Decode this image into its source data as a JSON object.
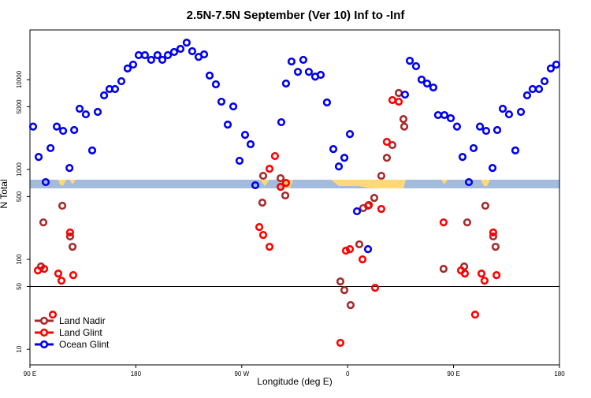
{
  "chart_data": {
    "type": "scatter",
    "title": "2.5N-7.5N September (Ver 10)   Inf to -Inf",
    "x_label": "Longitude (deg E)",
    "y_label": "N Total",
    "xlim": [
      90,
      540
    ],
    "xticks": [
      {
        "value": 90,
        "label": "90 E"
      },
      {
        "value": 180,
        "label": "180"
      },
      {
        "value": 270,
        "label": "90 W"
      },
      {
        "value": 360,
        "label": "0"
      },
      {
        "value": 450,
        "label": "90 E"
      },
      {
        "value": 540,
        "label": "180"
      }
    ],
    "ylim": [
      6.7,
      35700
    ],
    "yticks": [
      10,
      50,
      100,
      500,
      1000,
      5000,
      10000
    ],
    "y_log": true,
    "hline": 50,
    "legend": "bottom-left",
    "series": [
      {
        "name": "Land Nadir",
        "color": "#a52a2a",
        "x": [
          101.4,
          99.4,
          117.5,
          124.1,
          126.2,
          287.5,
          288.2,
          303,
          307,
          353.8,
          357.2,
          362.5,
          369.9,
          373.2,
          377.3,
          382.6,
          388.6,
          393.3,
          398,
          403.4,
          407.4,
          408.1,
          441.5,
          459,
          461.6,
          477,
          483.7,
          485.7
        ],
        "values": [
          258,
          83.4,
          395,
          180,
          138,
          428,
          851,
          801,
          514,
          56.8,
          45.5,
          31,
          147,
          372,
          395,
          483,
          851,
          1350,
          1870,
          7100,
          3640,
          3000,
          78.5,
          83.4,
          258,
          395,
          180,
          138
        ]
      },
      {
        "name": "Land Glint",
        "color": "#ff0000",
        "x": [
          96.7,
          102.1,
          114.1,
          116.8,
          124.1,
          126.8,
          109.4,
          284.9,
          288.2,
          293.6,
          293.6,
          298.2,
          303,
          307.6,
          353.8,
          358.5,
          361.9,
          372.6,
          378,
          383.3,
          388.6,
          393.3,
          398,
          403.4,
          441.5,
          456.3,
          459.6,
          473.7,
          476.3,
          483.7,
          486.5,
          468.3
        ],
        "values": [
          75.4,
          78.5,
          69.5,
          57.9,
          199,
          66.8,
          24.3,
          229,
          187,
          138,
          1020,
          1410,
          641,
          709,
          11.8,
          125,
          130,
          100,
          403,
          48.3,
          364,
          2030,
          5920,
          5680,
          258,
          75.4,
          69.5,
          69.5,
          57.9,
          199,
          66.8,
          24.3
        ]
      },
      {
        "name": "Ocean Glint",
        "color": "#0000ee",
        "x": [
          92.7,
          97.4,
          103.4,
          107.5,
          112.8,
          118.2,
          123.6,
          127.6,
          132.2,
          137.5,
          142.9,
          147.6,
          153,
          157.6,
          162.3,
          167.7,
          173,
          177.7,
          182.4,
          187.7,
          193,
          198.4,
          202.5,
          207.2,
          212.5,
          217.9,
          223.2,
          227.9,
          233.3,
          238,
          242.7,
          248,
          252.7,
          258.1,
          262.8,
          268.1,
          272.8,
          277.5,
          281.5,
          303.6,
          307.6,
          312.3,
          317.7,
          322.3,
          327,
          332.4,
          337.1,
          342.4,
          347.8,
          352.5,
          357.2,
          361.9,
          367.9,
          377.3,
          408.7,
          412.8,
          418.1,
          422.8,
          427.5,
          432.8,
          436.8,
          442.2,
          447.6,
          452.9,
          457.6,
          463,
          467,
          472.4,
          477.7,
          483.1,
          487.1,
          491.8,
          497.1,
          502.5,
          507.2,
          512.5,
          517.2,
          522.6,
          527.3,
          532.6,
          537.3
        ],
        "values": [
          3000,
          1380,
          724,
          1730,
          3000,
          2690,
          1040,
          2750,
          4740,
          4110,
          1630,
          4370,
          6680,
          7850,
          7850,
          9600,
          13300,
          14700,
          18700,
          18700,
          16600,
          18700,
          16600,
          18700,
          20300,
          22000,
          25800,
          20700,
          17900,
          19100,
          11100,
          8860,
          5680,
          3160,
          5030,
          1250,
          2430,
          1910,
          668,
          3360,
          9040,
          15900,
          12200,
          16600,
          12200,
          10800,
          11300,
          5570,
          1690,
          1080,
          1350,
          2480,
          343,
          130,
          6810,
          16200,
          14100,
          10000,
          9040,
          8170,
          4030,
          4030,
          3720,
          3000,
          1380,
          724,
          1730,
          3000,
          2690,
          1040,
          2750,
          4740,
          4110,
          1630,
          4370,
          6680,
          7850,
          7850,
          9600,
          13300,
          14700
        ]
      }
    ]
  }
}
